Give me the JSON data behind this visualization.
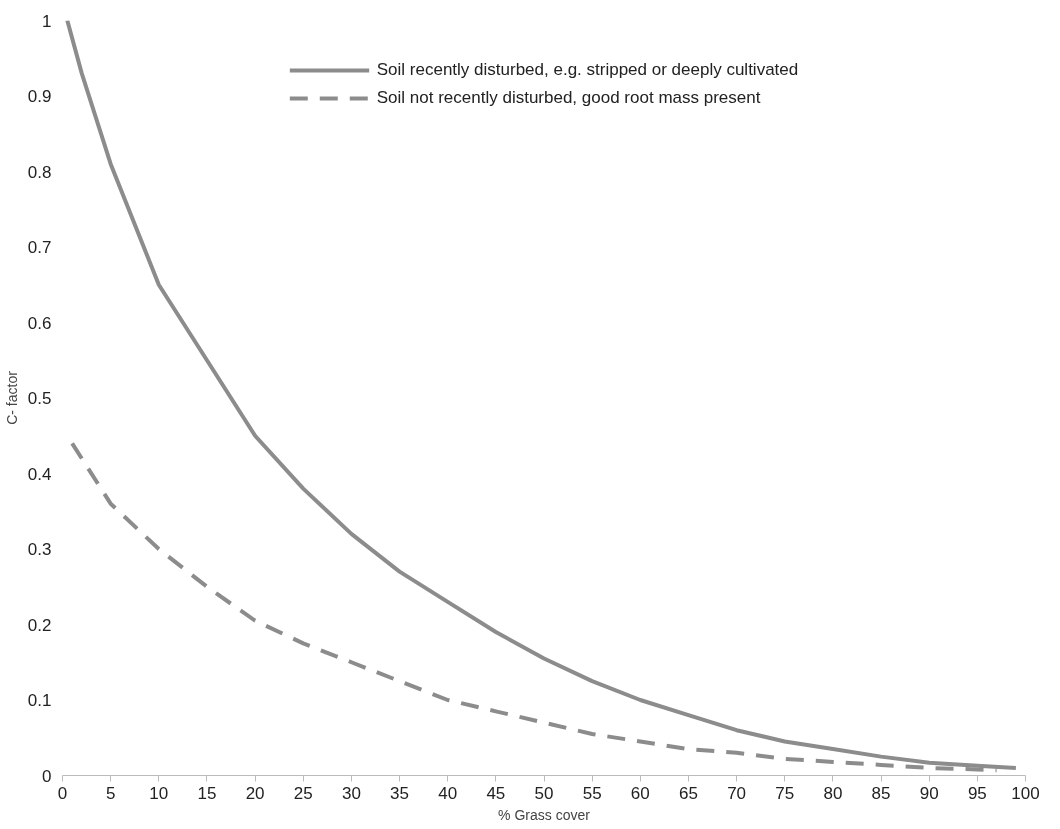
{
  "chart_data": {
    "type": "line",
    "xlabel": "% Grass cover",
    "ylabel": "C- factor",
    "xlim": [
      0,
      100
    ],
    "ylim": [
      0,
      1
    ],
    "xticks": [
      0,
      5,
      10,
      15,
      20,
      25,
      30,
      35,
      40,
      45,
      50,
      55,
      60,
      65,
      70,
      75,
      80,
      85,
      90,
      95,
      100
    ],
    "yticks": [
      0,
      0.1,
      0.2,
      0.3,
      0.4,
      0.5,
      0.6,
      0.7,
      0.8,
      0.9,
      1
    ],
    "grid": false,
    "legend": "top",
    "marker": "none",
    "series": [
      {
        "name": "Soil recently disturbed, e.g. stripped or deeply cultivated",
        "color": "#8c8c8c",
        "line_style": "solid",
        "x": [
          0.5,
          2,
          5,
          10,
          15,
          20,
          25,
          30,
          35,
          40,
          45,
          50,
          55,
          60,
          65,
          70,
          75,
          80,
          85,
          90,
          95,
          99
        ],
        "values": [
          1.0,
          0.93,
          0.81,
          0.65,
          0.55,
          0.45,
          0.38,
          0.32,
          0.27,
          0.23,
          0.19,
          0.155,
          0.125,
          0.1,
          0.08,
          0.06,
          0.045,
          0.035,
          0.025,
          0.017,
          0.013,
          0.01
        ]
      },
      {
        "name": "Soil not recently disturbed, good root mass present",
        "color": "#8c8c8c",
        "line_style": "dashed",
        "x": [
          1,
          5,
          10,
          15,
          20,
          25,
          30,
          35,
          40,
          45,
          50,
          55,
          60,
          65,
          70,
          75,
          80,
          85,
          90,
          95,
          97
        ],
        "values": [
          0.44,
          0.36,
          0.3,
          0.25,
          0.205,
          0.175,
          0.15,
          0.125,
          0.1,
          0.085,
          0.07,
          0.055,
          0.045,
          0.035,
          0.03,
          0.022,
          0.018,
          0.014,
          0.01,
          0.008,
          0.007
        ]
      }
    ]
  }
}
